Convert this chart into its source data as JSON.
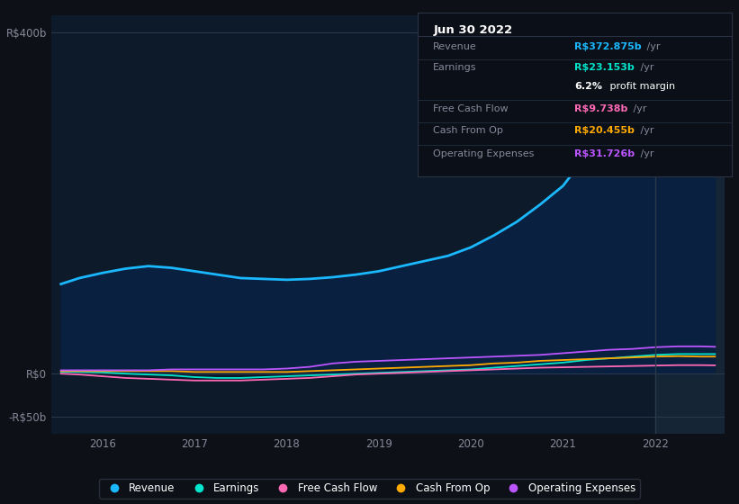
{
  "bg_color": "#0d1117",
  "plot_bg_color": "#0d1a2a",
  "plot_bg_color_highlight": "#152535",
  "tooltip_bg": "#0a0f18",
  "title": "Jun 30 2022",
  "ylim_min": -70,
  "ylim_max": 420,
  "yticks": [
    -50,
    0,
    400
  ],
  "ytick_labels": [
    "-R$50b",
    "R$0",
    "R$400b"
  ],
  "xtick_positions": [
    2016,
    2017,
    2018,
    2019,
    2020,
    2021,
    2022
  ],
  "x_min": 2015.45,
  "x_max": 2022.75,
  "highlight_x": 2022.0,
  "revenue_color": "#1ab8ff",
  "revenue_fill": "#0a2040",
  "earnings_color": "#00e5cc",
  "fcf_color": "#ff69b4",
  "cfo_color": "#ffaa00",
  "opex_color": "#bb55ff",
  "tooltip": {
    "date": "Jun 30 2022",
    "rows": [
      {
        "label": "Revenue",
        "value": "R$372.875b",
        "color": "#1ab8ff",
        "suffix": "/yr"
      },
      {
        "label": "Earnings",
        "value": "R$23.153b",
        "color": "#00e5cc",
        "suffix": "/yr"
      },
      {
        "label": "",
        "value": "6.2%",
        "color": "white",
        "suffix": " profit margin",
        "bold_value": true
      },
      {
        "label": "Free Cash Flow",
        "value": "R$9.738b",
        "color": "#ff69b4",
        "suffix": "/yr"
      },
      {
        "label": "Cash From Op",
        "value": "R$20.455b",
        "color": "#ffaa00",
        "suffix": "/yr"
      },
      {
        "label": "Operating Expenses",
        "value": "R$31.726b",
        "color": "#bb55ff",
        "suffix": "/yr"
      }
    ]
  },
  "legend": [
    {
      "label": "Revenue",
      "color": "#1ab8ff"
    },
    {
      "label": "Earnings",
      "color": "#00e5cc"
    },
    {
      "label": "Free Cash Flow",
      "color": "#ff69b4"
    },
    {
      "label": "Cash From Op",
      "color": "#ffaa00"
    },
    {
      "label": "Operating Expenses",
      "color": "#bb55ff"
    }
  ]
}
